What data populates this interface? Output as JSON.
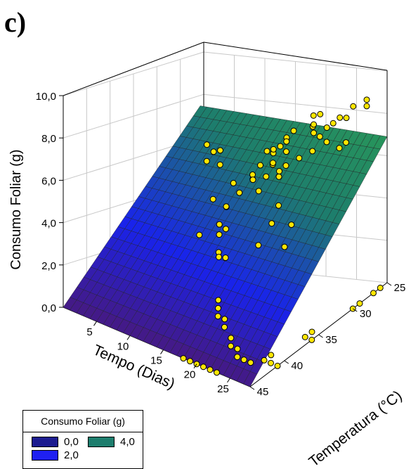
{
  "panel_label": "c)",
  "colors": {
    "level_0": "#1c1c8f",
    "level_2": "#1f20f2",
    "level_4": "#1d7d6d"
  },
  "legend": {
    "title": "Consumo Foliar (g)",
    "items": [
      {
        "label": "0,0",
        "color": "#1c1c8f"
      },
      {
        "label": "2,0",
        "color": "#1f20f2"
      },
      {
        "label": "4,0",
        "color": "#1d7d6d"
      }
    ]
  },
  "chart_data": {
    "type": "3d-surface",
    "zlabel": "Consumo Foliar (g)",
    "xlabel": "Tempo (Dias)",
    "ylabel": "Temperatura (°C)",
    "x_ticks": [
      "5",
      "10",
      "15",
      "20",
      "25"
    ],
    "y_ticks": [
      "25",
      "30",
      "35",
      "40",
      "45"
    ],
    "z_ticks": [
      "0,0",
      "2,0",
      "4,0",
      "6,0",
      "8,0",
      "10,0"
    ],
    "xlim": [
      0,
      28
    ],
    "ylim": [
      25,
      45
    ],
    "zlim": [
      0,
      10
    ],
    "surface_corners": [
      {
        "x": 0,
        "y": 25,
        "z": 4.6
      },
      {
        "x": 0,
        "y": 45,
        "z": 0
      },
      {
        "x": 28,
        "y": 45,
        "z": 0
      },
      {
        "x": 28,
        "y": 25,
        "z": 6.9
      }
    ],
    "points": [
      {
        "x": 27,
        "y": 27,
        "z": 9.0
      },
      {
        "x": 27,
        "y": 27,
        "z": 8.7
      },
      {
        "x": 26,
        "y": 28,
        "z": 8.8
      },
      {
        "x": 26,
        "y": 29,
        "z": 8.5
      },
      {
        "x": 28,
        "y": 31,
        "z": 8.1
      },
      {
        "x": 27,
        "y": 31,
        "z": 7.7
      },
      {
        "x": 24,
        "y": 28,
        "z": 8.0
      },
      {
        "x": 23,
        "y": 28,
        "z": 7.6
      },
      {
        "x": 22,
        "y": 30,
        "z": 7.8
      },
      {
        "x": 24,
        "y": 32,
        "z": 7.4
      },
      {
        "x": 22,
        "y": 32,
        "z": 6.8
      },
      {
        "x": 19,
        "y": 26,
        "z": 7.0
      },
      {
        "x": 18,
        "y": 26,
        "z": 6.8
      },
      {
        "x": 20,
        "y": 26,
        "z": 6.5
      },
      {
        "x": 21,
        "y": 28,
        "z": 6.7
      },
      {
        "x": 21,
        "y": 27,
        "z": 6.2
      },
      {
        "x": 17,
        "y": 25,
        "z": 6.0
      },
      {
        "x": 17,
        "y": 25,
        "z": 5.6
      },
      {
        "x": 14,
        "y": 25,
        "z": 5.3
      },
      {
        "x": 12,
        "y": 25,
        "z": 4.3
      },
      {
        "x": 15,
        "y": 27,
        "z": 5.6
      },
      {
        "x": 16,
        "y": 28,
        "z": 5.8
      },
      {
        "x": 18,
        "y": 31,
        "z": 5.4
      },
      {
        "x": 17,
        "y": 29,
        "z": 5.7
      },
      {
        "x": 16,
        "y": 30,
        "z": 5.2
      },
      {
        "x": 19,
        "y": 31,
        "z": 5.8
      },
      {
        "x": 20,
        "y": 33,
        "z": 5.9
      },
      {
        "x": 15,
        "y": 29,
        "z": 4.9
      },
      {
        "x": 15,
        "y": 30,
        "z": 4.5
      },
      {
        "x": 13,
        "y": 27,
        "z": 4.6
      },
      {
        "x": 12,
        "y": 26,
        "z": 4.4
      },
      {
        "x": 10,
        "y": 25,
        "z": 3.8
      },
      {
        "x": 9,
        "y": 25,
        "z": 3.0
      },
      {
        "x": 13,
        "y": 30,
        "z": 4.1
      },
      {
        "x": 14,
        "y": 31,
        "z": 4.7
      },
      {
        "x": 18,
        "y": 34,
        "z": 5.2
      },
      {
        "x": 22,
        "y": 35,
        "z": 5.3
      },
      {
        "x": 22,
        "y": 36,
        "z": 4.7
      },
      {
        "x": 20,
        "y": 36,
        "z": 3.4
      },
      {
        "x": 12,
        "y": 29,
        "z": 3.7
      },
      {
        "x": 11,
        "y": 30,
        "z": 3.2
      },
      {
        "x": 27,
        "y": 38,
        "z": 5.8
      },
      {
        "x": 27,
        "y": 39,
        "z": 5.0
      },
      {
        "x": 1,
        "y": 25,
        "z": 2.9
      },
      {
        "x": 2,
        "y": 25,
        "z": 2.7
      },
      {
        "x": 2,
        "y": 26,
        "z": 2.5
      },
      {
        "x": 3,
        "y": 25,
        "z": 2.9
      },
      {
        "x": 4,
        "y": 26,
        "z": 2.6
      },
      {
        "x": 6,
        "y": 26,
        "z": 2.0
      },
      {
        "x": 5,
        "y": 28,
        "z": 1.6
      },
      {
        "x": 7,
        "y": 28,
        "z": 1.5
      },
      {
        "x": 8,
        "y": 30,
        "z": 1.3
      },
      {
        "x": 9,
        "y": 31,
        "z": 1.2
      },
      {
        "x": 10,
        "y": 31,
        "z": 1.6
      },
      {
        "x": 8,
        "y": 29,
        "z": 1.9
      },
      {
        "x": 12,
        "y": 33,
        "z": 1.0
      },
      {
        "x": 12,
        "y": 34,
        "z": 1.5
      },
      {
        "x": 11,
        "y": 33,
        "z": 0.9
      },
      {
        "x": 5,
        "y": 30,
        "z": 0.4
      },
      {
        "x": 14,
        "y": 36,
        "z": 0.0
      },
      {
        "x": 15,
        "y": 37,
        "z": 0.0
      },
      {
        "x": 16,
        "y": 38,
        "z": 0.0
      },
      {
        "x": 17,
        "y": 38,
        "z": 0.0
      },
      {
        "x": 18,
        "y": 39,
        "z": 0.0
      },
      {
        "x": 20,
        "y": 40,
        "z": 0.0
      },
      {
        "x": 21,
        "y": 41,
        "z": 0.0
      },
      {
        "x": 22,
        "y": 41,
        "z": 0.0
      },
      {
        "x": 23,
        "y": 42,
        "z": 0.0
      },
      {
        "x": 24,
        "y": 42,
        "z": 0.0
      },
      {
        "x": 25,
        "y": 42,
        "z": 0.0
      },
      {
        "x": 18,
        "y": 45,
        "z": 0.0
      },
      {
        "x": 19,
        "y": 45,
        "z": 0.0
      },
      {
        "x": 20,
        "y": 45,
        "z": 0.0
      },
      {
        "x": 21,
        "y": 45,
        "z": 0.0
      },
      {
        "x": 22,
        "y": 45,
        "z": 0.0
      },
      {
        "x": 23,
        "y": 45,
        "z": 0.0
      },
      {
        "x": 26,
        "y": 41,
        "z": 0.0
      },
      {
        "x": 27,
        "y": 41,
        "z": 0.0
      },
      {
        "x": 28,
        "y": 41,
        "z": 0.0
      },
      {
        "x": 26,
        "y": 40,
        "z": 0.0
      },
      {
        "x": 27,
        "y": 36,
        "z": 0.0
      },
      {
        "x": 28,
        "y": 36,
        "z": 0.0
      },
      {
        "x": 27,
        "y": 35,
        "z": 0.0
      },
      {
        "x": 28,
        "y": 30,
        "z": 0.0
      },
      {
        "x": 28,
        "y": 29,
        "z": 0.0
      },
      {
        "x": 28,
        "y": 27,
        "z": 0.0
      },
      {
        "x": 28,
        "y": 26,
        "z": 0.0
      }
    ]
  }
}
